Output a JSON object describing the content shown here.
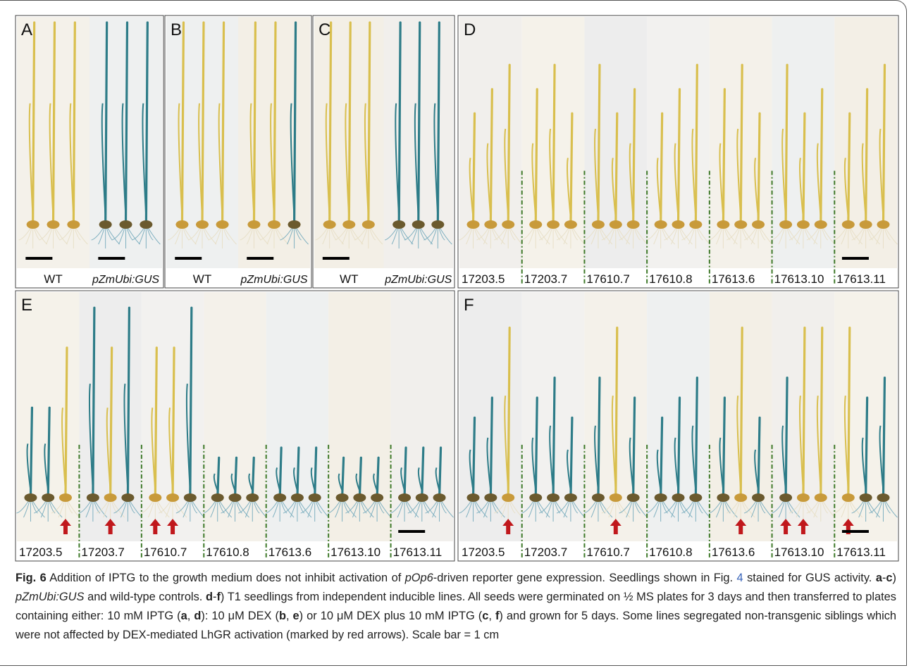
{
  "panels": [
    {
      "letter": "A",
      "labels": [
        "WT",
        "pZmUbi:GUS"
      ]
    },
    {
      "letter": "B",
      "labels": [
        "WT",
        "pZmUbi:GUS"
      ]
    },
    {
      "letter": "C",
      "labels": [
        "WT",
        "pZmUbi:GUS"
      ]
    },
    {
      "letter": "D",
      "labels": [
        "17203.5",
        "17203.7",
        "17610.7",
        "17610.8",
        "17613.6",
        "17613.10",
        "17613.11"
      ]
    },
    {
      "letter": "E",
      "labels": [
        "17203.5",
        "17203.7",
        "17610.7",
        "17610.8",
        "17613.6",
        "17613.10",
        "17613.11"
      ]
    },
    {
      "letter": "F",
      "labels": [
        "17203.5",
        "17203.7",
        "17610.7",
        "17610.8",
        "17613.6",
        "17613.10",
        "17613.11"
      ]
    }
  ],
  "caption": {
    "segments": [
      "Fig. 6",
      " Addition of IPTG to the growth medium does not inhibit activation of ",
      "pOp6",
      "-driven reporter gene expression. Seedlings shown in Fig. ",
      "4",
      " stained for GUS activity. ",
      "a",
      "-",
      "c",
      ") ",
      "pZmUbi:GUS",
      " and wild-type controls. ",
      "d",
      "-",
      "f",
      ") T1 seedlings from independent inducible lines. All seeds were germinated on ½ MS plates for 3 days and then transferred to plates containing either: 10 mM IPTG (",
      "a",
      ", ",
      "d",
      "): 10 μM DEX (",
      "b",
      ", ",
      "e",
      ") or 10 μM DEX plus 10 mM IPTG (",
      "c",
      ", ",
      "f",
      ") and grown for 5 days. Some lines segregated non-transgenic siblings which were not affected by DEX-mediated LhGR activation (marked by red arrows). Scale bar = 1 cm"
    ]
  }
}
